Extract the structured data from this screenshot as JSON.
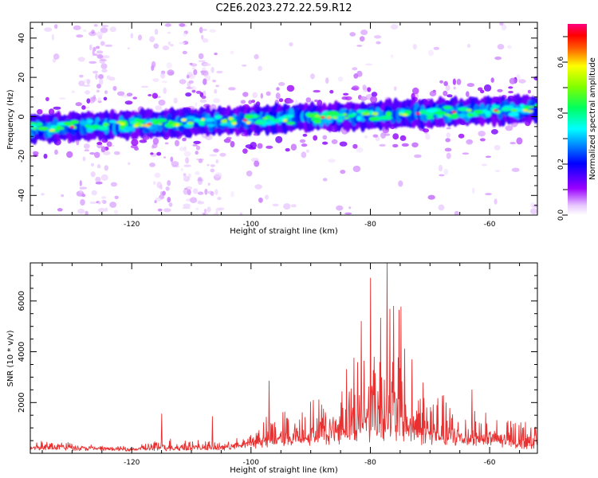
{
  "title": "C2E6.2023.272.22.59.R12",
  "colors": {
    "snr_line": "#e83030",
    "frame": "#000000",
    "background": "#ffffff"
  },
  "chart_data": [
    {
      "type": "heatmap",
      "xlabel": "Height of straight line (km)",
      "ylabel": "Frequency (Hz)",
      "xlim": [
        -137,
        -52
      ],
      "ylim": [
        -50,
        48
      ],
      "x_ticks": [
        "-120",
        "-100",
        "-80",
        "-60"
      ],
      "y_ticks": [
        "40",
        "20",
        "0",
        "-20",
        "-40"
      ],
      "colorbar": {
        "label": "Normalized spectral amplitude",
        "range": [
          0.0,
          0.75
        ],
        "ticks": [
          "0.0",
          "0.2",
          "0.4",
          "0.6"
        ],
        "colormap": "rainbow-white-magenta-blue-cyan-green-yellow-red-pink"
      },
      "band_center_hz": {
        "at_x_-137": -6,
        "at_x_-52": 4
      },
      "band_halfwidth_hz": 6,
      "peak_amplitude": 0.72,
      "scattered_noise_columns_km": [
        -127,
        -124,
        -115,
        -110,
        -107
      ]
    },
    {
      "type": "line",
      "xlabel": "Height of straight line (km)",
      "ylabel": "SNR (10 * v/v)",
      "xlim": [
        -137,
        -52
      ],
      "ylim": [
        0,
        7500
      ],
      "x_ticks": [
        "-120",
        "-100",
        "-80",
        "-60"
      ],
      "y_ticks": [
        "2000",
        "4000",
        "6000"
      ],
      "envelope": {
        "x": [
          -137,
          -130,
          -125,
          -120,
          -115,
          -110,
          -105,
          -101,
          -98,
          -95,
          -92,
          -89,
          -86,
          -84,
          -82,
          -80,
          -78,
          -76,
          -74,
          -72,
          -70,
          -67,
          -64,
          -61,
          -58,
          -55,
          -52
        ],
        "y": [
          600,
          500,
          300,
          300,
          700,
          600,
          500,
          700,
          1500,
          1800,
          2000,
          2500,
          3300,
          4400,
          4600,
          6900,
          6500,
          7500,
          4800,
          3500,
          2800,
          2300,
          2000,
          1900,
          1600,
          1500,
          1600
        ]
      },
      "baseline": {
        "x": [
          -137,
          -120,
          -105,
          -100,
          -90,
          -84,
          -80,
          -76,
          -70,
          -60,
          -52
        ],
        "y": [
          300,
          200,
          250,
          450,
          700,
          900,
          1000,
          1000,
          700,
          500,
          400
        ]
      },
      "spikes": [
        {
          "x": -115,
          "y": 1550
        },
        {
          "x": -106.5,
          "y": 1450
        },
        {
          "x": -97,
          "y": 2850
        },
        {
          "x": -81.5,
          "y": 5200
        },
        {
          "x": -80,
          "y": 6900
        },
        {
          "x": -77.2,
          "y": 7500
        },
        {
          "x": -63,
          "y": 2500
        }
      ]
    }
  ]
}
